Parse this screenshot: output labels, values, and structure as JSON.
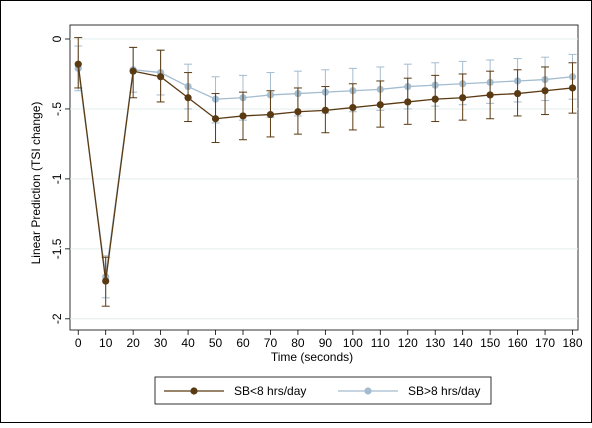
{
  "chart_data": {
    "type": "line",
    "title": "",
    "xlabel": "Time (seconds)",
    "ylabel": "Linear Prediction (TSI change)",
    "x": [
      0,
      10,
      20,
      30,
      40,
      50,
      60,
      70,
      80,
      90,
      100,
      110,
      120,
      130,
      140,
      150,
      160,
      170,
      180
    ],
    "xticks": [
      "0",
      "10",
      "20",
      "30",
      "40",
      "50",
      "60",
      "70",
      "80",
      "90",
      "100",
      "110",
      "120",
      "130",
      "140",
      "150",
      "160",
      "170",
      "180"
    ],
    "yticks": [
      "0",
      "-.5",
      "-1",
      "-1.5",
      "-2"
    ],
    "ytick_values": [
      0,
      -0.5,
      -1,
      -1.5,
      -2
    ],
    "xlim": [
      -3,
      182
    ],
    "ylim": [
      -2.08,
      0.1
    ],
    "grid": "horizontal",
    "legend_position": "bottom",
    "series": [
      {
        "name": "SB<8 hrs/day",
        "color": "#5a3a13",
        "marker": "filled-circle",
        "values": [
          -0.18,
          -1.73,
          -0.23,
          -0.27,
          -0.42,
          -0.57,
          -0.55,
          -0.54,
          -0.52,
          -0.51,
          -0.49,
          -0.47,
          -0.45,
          -0.43,
          -0.42,
          -0.4,
          -0.39,
          -0.37,
          -0.35
        ],
        "ci_low": [
          -0.35,
          -1.91,
          -0.42,
          -0.45,
          -0.59,
          -0.74,
          -0.72,
          -0.7,
          -0.68,
          -0.67,
          -0.65,
          -0.63,
          -0.61,
          -0.59,
          -0.58,
          -0.57,
          -0.55,
          -0.54,
          -0.53
        ],
        "ci_high": [
          0.01,
          -1.56,
          -0.06,
          -0.08,
          -0.24,
          -0.39,
          -0.38,
          -0.37,
          -0.35,
          -0.34,
          -0.32,
          -0.3,
          -0.28,
          -0.26,
          -0.25,
          -0.23,
          -0.22,
          -0.2,
          -0.17
        ]
      },
      {
        "name": "SB>8 hrs/day",
        "color": "#a3bccf",
        "marker": "filled-circle",
        "values": [
          -0.21,
          -1.7,
          -0.22,
          -0.24,
          -0.34,
          -0.43,
          -0.42,
          -0.4,
          -0.39,
          -0.38,
          -0.37,
          -0.36,
          -0.34,
          -0.33,
          -0.32,
          -0.31,
          -0.3,
          -0.29,
          -0.27
        ],
        "ci_low": [
          -0.37,
          -1.85,
          -0.38,
          -0.4,
          -0.5,
          -0.6,
          -0.58,
          -0.56,
          -0.55,
          -0.53,
          -0.52,
          -0.51,
          -0.5,
          -0.48,
          -0.47,
          -0.46,
          -0.45,
          -0.44,
          -0.43
        ],
        "ci_high": [
          -0.05,
          -1.55,
          -0.06,
          -0.08,
          -0.18,
          -0.27,
          -0.26,
          -0.24,
          -0.23,
          -0.22,
          -0.21,
          -0.2,
          -0.18,
          -0.17,
          -0.16,
          -0.15,
          -0.14,
          -0.13,
          -0.11
        ]
      }
    ]
  }
}
